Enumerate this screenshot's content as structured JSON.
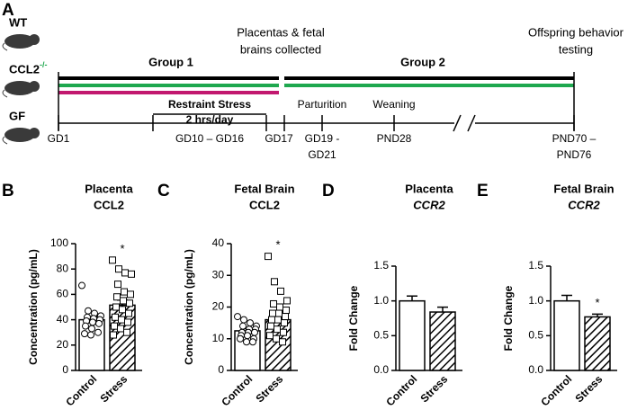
{
  "timeline": {
    "panel": "A",
    "strains": [
      {
        "label": "WT",
        "color": "#000000"
      },
      {
        "label": "CCL2",
        "sup": "-/-",
        "color": "#1fa84f"
      },
      {
        "label": "GF",
        "color": "#c2186f"
      }
    ],
    "groups": [
      "Group 1",
      "Group 2"
    ],
    "collected": [
      "Placentas & fetal",
      "brains collected"
    ],
    "testing": [
      "Offspring behavior",
      "testing"
    ],
    "stress": [
      "Restraint Stress",
      "2 hrs/day"
    ],
    "events": [
      "Parturition",
      "Weaning"
    ],
    "ticks": [
      [
        "GD1"
      ],
      [
        "GD10 – GD16"
      ],
      [
        "GD17"
      ],
      [
        "GD19 -",
        "GD21"
      ],
      [
        "PND28"
      ],
      [
        "PND70 –",
        "PND76"
      ]
    ]
  },
  "chart_data": [
    {
      "type": "bar",
      "panel": "B",
      "title": "Placenta",
      "subtitle": "CCL2",
      "ylabel": "Concentration (pg/mL)",
      "categories": [
        "Control",
        "Stress"
      ],
      "values": [
        40,
        51.5
      ],
      "errors": [
        2.5,
        4
      ],
      "annotation": "*",
      "points": [
        [
          67,
          47,
          45,
          43,
          42,
          41,
          40,
          39,
          38,
          37,
          35,
          33,
          30,
          29,
          28
        ],
        [
          87,
          80,
          77,
          76,
          68,
          62,
          60,
          58,
          55,
          53,
          50,
          48,
          45,
          42,
          40,
          38,
          35,
          33,
          30,
          28
        ]
      ],
      "ylim": [
        0,
        100
      ],
      "yticks": [
        0,
        20,
        40,
        60,
        80,
        100
      ]
    },
    {
      "type": "bar",
      "panel": "C",
      "title": "Fetal Brain",
      "subtitle": "CCL2",
      "ylabel": "Concentration (pg/mL)",
      "categories": [
        "Control",
        "Stress"
      ],
      "values": [
        12.5,
        16
      ],
      "errors": [
        0.7,
        1.5
      ],
      "annotation": "*",
      "points": [
        [
          17,
          16,
          15,
          14,
          14,
          13,
          13,
          12,
          12,
          12,
          11,
          11,
          10,
          10,
          9,
          9
        ],
        [
          36,
          28,
          25,
          22,
          21,
          20,
          19,
          18,
          18,
          17,
          16,
          16,
          15,
          14,
          13,
          12,
          11,
          10,
          9
        ]
      ],
      "ylim": [
        0,
        40
      ],
      "yticks": [
        0,
        10,
        20,
        30,
        40
      ]
    },
    {
      "type": "bar",
      "panel": "D",
      "title": "Placenta",
      "subtitle": "CCR2",
      "subtitle_italic": true,
      "ylabel": "Fold Change",
      "categories": [
        "Control",
        "Stress"
      ],
      "values": [
        1.0,
        0.84
      ],
      "errors": [
        0.07,
        0.07
      ],
      "ylim": [
        0,
        1.5
      ],
      "yticks": [
        {
          "value": 0,
          "label": "0.0"
        },
        {
          "value": 0.5,
          "label": "0.5"
        },
        {
          "value": 1,
          "label": "1.0"
        },
        {
          "value": 1.5,
          "label": "1.5"
        }
      ]
    },
    {
      "type": "bar",
      "panel": "E",
      "title": "Fetal Brain",
      "subtitle": "CCR2",
      "subtitle_italic": true,
      "ylabel": "Fold Change",
      "categories": [
        "Control",
        "Stress"
      ],
      "values": [
        1.0,
        0.77
      ],
      "errors": [
        0.08,
        0.04
      ],
      "annotation": "*",
      "ylim": [
        0,
        1.5
      ],
      "yticks": [
        {
          "value": 0,
          "label": "0.0"
        },
        {
          "value": 0.5,
          "label": "0.5"
        },
        {
          "value": 1,
          "label": "1.0"
        },
        {
          "value": 1.5,
          "label": "1.5"
        }
      ]
    }
  ]
}
